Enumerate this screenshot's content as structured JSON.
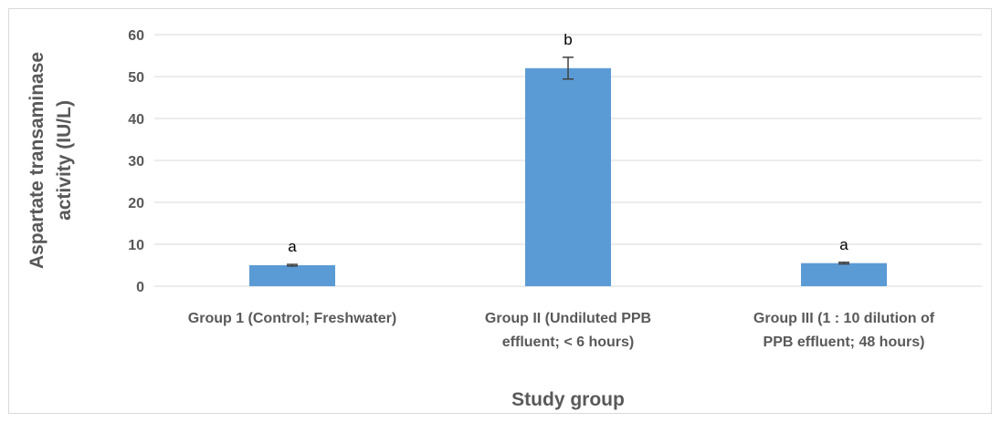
{
  "chart_data": {
    "type": "bar",
    "categories": [
      [
        "Group 1 (Control; Freshwater)"
      ],
      [
        "Group II (Undiluted PPB",
        "effluent; < 6 hours)"
      ],
      [
        "Group III (1 : 10 dilution of",
        "PPB effluent; 48 hours)"
      ]
    ],
    "values": [
      5,
      52,
      5.5
    ],
    "error": [
      0.2,
      2.6,
      0.2
    ],
    "annotations": [
      "a",
      "b",
      "a"
    ],
    "xlabel": "Study group",
    "ylabel": [
      "Aspartate transaminase",
      "activity (IU/L)"
    ],
    "ylim": [
      0,
      60
    ],
    "yticks": [
      0,
      10,
      20,
      30,
      40,
      50,
      60
    ],
    "grid": true,
    "colors": {
      "bar": "#5b9bd5",
      "grid": "#d9d9d9",
      "error": "#404040"
    }
  }
}
